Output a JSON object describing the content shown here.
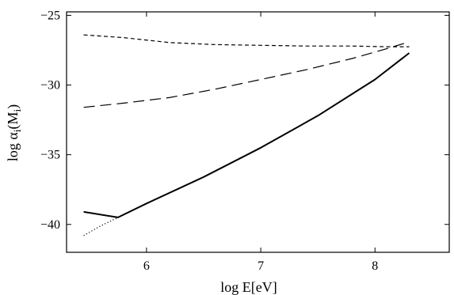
{
  "chart_data": {
    "type": "line",
    "title": "",
    "xlabel": "log E[eV]",
    "ylabel": "log α",
    "ylabel_sub": "i",
    "ylabel_paren": "(M",
    "ylabel_paren_sub": "i",
    "ylabel_close": ")",
    "xlim": [
      5.3,
      8.65
    ],
    "ylim": [
      -42.0,
      -24.75
    ],
    "xticks": [
      6,
      7,
      8
    ],
    "xtick_labels": [
      "6",
      "7",
      "8"
    ],
    "yticks": [
      -40,
      -35,
      -30,
      -25
    ],
    "ytick_labels": [
      "−40",
      "−35",
      "−30",
      "−25"
    ],
    "grid": false,
    "series": [
      {
        "style": "solid",
        "x": [
          5.45,
          5.75,
          6.0,
          6.5,
          7.0,
          7.5,
          8.0,
          8.3
        ],
        "y": [
          -39.1,
          -39.5,
          -38.5,
          -36.6,
          -34.5,
          -32.2,
          -29.6,
          -27.7
        ]
      },
      {
        "style": "dotted",
        "x": [
          5.45,
          5.6,
          5.75
        ],
        "y": [
          -40.8,
          -40.1,
          -39.5
        ]
      },
      {
        "style": "long-dash",
        "x": [
          5.45,
          5.8,
          6.2,
          6.6,
          7.0,
          7.4,
          7.8,
          8.1,
          8.3
        ],
        "y": [
          -31.6,
          -31.3,
          -30.9,
          -30.3,
          -29.6,
          -28.9,
          -28.1,
          -27.4,
          -26.9
        ]
      },
      {
        "style": "short-dash",
        "x": [
          5.45,
          5.8,
          6.2,
          6.6,
          7.0,
          7.4,
          7.8,
          8.1,
          8.3
        ],
        "y": [
          -26.4,
          -26.6,
          -26.95,
          -27.1,
          -27.15,
          -27.2,
          -27.2,
          -27.25,
          -27.25
        ]
      }
    ]
  }
}
